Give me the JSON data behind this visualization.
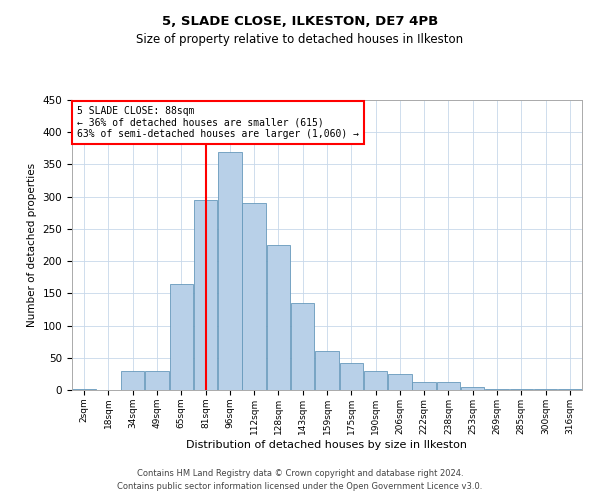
{
  "title1": "5, SLADE CLOSE, ILKESTON, DE7 4PB",
  "title2": "Size of property relative to detached houses in Ilkeston",
  "xlabel": "Distribution of detached houses by size in Ilkeston",
  "ylabel": "Number of detached properties",
  "footnote1": "Contains HM Land Registry data © Crown copyright and database right 2024.",
  "footnote2": "Contains public sector information licensed under the Open Government Licence v3.0.",
  "annotation_line1": "5 SLADE CLOSE: 88sqm",
  "annotation_line2": "← 36% of detached houses are smaller (615)",
  "annotation_line3": "63% of semi-detached houses are larger (1,060) →",
  "property_value_bin": 5,
  "bar_color": "#b8d0e8",
  "bar_edge_color": "#6699bb",
  "vline_color": "red",
  "background_color": "#ffffff",
  "grid_color": "#c8d8ea",
  "categories": [
    "2sqm",
    "18sqm",
    "34sqm",
    "49sqm",
    "65sqm",
    "81sqm",
    "96sqm",
    "112sqm",
    "128sqm",
    "143sqm",
    "159sqm",
    "175sqm",
    "190sqm",
    "206sqm",
    "222sqm",
    "238sqm",
    "253sqm",
    "269sqm",
    "285sqm",
    "300sqm",
    "316sqm"
  ],
  "values": [
    2,
    0,
    30,
    30,
    165,
    295,
    370,
    290,
    225,
    135,
    60,
    42,
    30,
    25,
    12,
    12,
    5,
    2,
    2,
    1,
    1
  ],
  "ylim": [
    0,
    450
  ],
  "yticks": [
    0,
    50,
    100,
    150,
    200,
    250,
    300,
    350,
    400,
    450
  ]
}
